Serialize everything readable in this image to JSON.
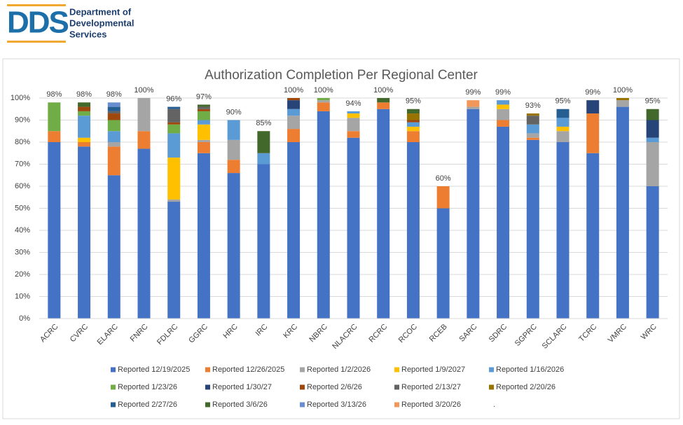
{
  "header": {
    "logo": "DDS",
    "org_lines": [
      "Department of",
      "Developmental",
      "Services"
    ]
  },
  "chart_data": {
    "type": "stacked-bar",
    "title": "Authorization Completion Per Regional Center",
    "categories": [
      "ACRC",
      "CVRC",
      "ELARC",
      "FNRC",
      "FDLRC",
      "GGRC",
      "HRC",
      "IRC",
      "KRC",
      "NBRC",
      "NLACRC",
      "RCRC",
      "RCOC",
      "RCEB",
      "SARC",
      "SDRC",
      "SGPRC",
      "SCLARC",
      "TCRC",
      "VMRC",
      "WRC"
    ],
    "series": [
      {
        "name": "Reported 12/19/2025",
        "color": "#4472c4",
        "values": [
          80,
          78,
          65,
          77,
          53,
          75,
          66,
          70,
          80,
          94,
          82,
          95,
          80,
          50,
          95,
          87,
          81,
          80,
          75,
          96,
          60
        ]
      },
      {
        "name": "Reported 12/26/2025",
        "color": "#ed7d31",
        "values": [
          5,
          2,
          13,
          8,
          0,
          5,
          6,
          0,
          6,
          4,
          3,
          3,
          5,
          10,
          0,
          3,
          1,
          0,
          18,
          0,
          0
        ]
      },
      {
        "name": "Reported 1/2/2026",
        "color": "#a5a5a5",
        "values": [
          0,
          0,
          2,
          15,
          1,
          1,
          9,
          0,
          6,
          1,
          6,
          0,
          0,
          0,
          1,
          5,
          2,
          5,
          0,
          3,
          20
        ]
      },
      {
        "name": "Reported 1/9/2027",
        "color": "#ffc000",
        "values": [
          0,
          2,
          0,
          0,
          19,
          7,
          0,
          0,
          0,
          0,
          2,
          0,
          2,
          0,
          0,
          2,
          0,
          2,
          0,
          0,
          0
        ]
      },
      {
        "name": "Reported 1/16/2026",
        "color": "#5b9bd5",
        "values": [
          0,
          10,
          5,
          0,
          11,
          2,
          9,
          5,
          3,
          0,
          1,
          0,
          2,
          0,
          0,
          2,
          4,
          4,
          0,
          0,
          2
        ]
      },
      {
        "name": "Reported 1/23/26",
        "color": "#70ad47",
        "values": [
          13,
          2,
          5,
          0,
          4,
          4,
          0,
          0,
          0,
          1,
          0,
          0,
          0,
          0,
          0,
          0,
          0,
          0,
          0,
          0,
          0
        ]
      },
      {
        "name": "Reported 1/30/27",
        "color": "#264478",
        "values": [
          0,
          0,
          0,
          0,
          0,
          0,
          0,
          0,
          4,
          0,
          0,
          0,
          0,
          0,
          0,
          0,
          0,
          0,
          6,
          0,
          8
        ]
      },
      {
        "name": "Reported 2/6/26",
        "color": "#9e480e",
        "values": [
          0,
          2,
          3,
          0,
          1,
          1,
          0,
          0,
          1,
          0,
          0,
          0,
          1,
          0,
          0,
          0,
          0,
          0,
          0,
          0,
          0
        ]
      },
      {
        "name": "Reported 2/13/27",
        "color": "#636363",
        "values": [
          0,
          0,
          1,
          0,
          6,
          1,
          0,
          0,
          0,
          0,
          0,
          0,
          0,
          0,
          0,
          0,
          4,
          0,
          0,
          0,
          0
        ]
      },
      {
        "name": "Reported 2/20/26",
        "color": "#997300",
        "values": [
          0,
          0,
          0,
          0,
          0,
          0,
          0,
          0,
          0,
          0,
          0,
          0,
          3,
          0,
          0,
          0,
          1,
          0,
          0,
          1,
          0
        ]
      },
      {
        "name": "Reported 2/27/26",
        "color": "#255e91",
        "values": [
          0,
          0,
          2,
          0,
          1,
          0,
          0,
          0,
          0,
          0,
          0,
          0,
          0,
          0,
          0,
          0,
          0,
          4,
          0,
          0,
          0
        ]
      },
      {
        "name": "Reported 3/6/26",
        "color": "#43682b",
        "values": [
          0,
          2,
          0,
          0,
          0,
          1,
          0,
          10,
          0,
          0,
          0,
          2,
          2,
          0,
          0,
          0,
          0,
          0,
          0,
          0,
          5
        ]
      },
      {
        "name": "Reported 3/13/26",
        "color": "#698ed0",
        "values": [
          0,
          0,
          2,
          0,
          0,
          0,
          0,
          0,
          0,
          0,
          0,
          0,
          0,
          0,
          0,
          0,
          0,
          0,
          0,
          0,
          0
        ]
      },
      {
        "name": "Reported 3/20/26",
        "color": "#f1975a",
        "values": [
          0,
          0,
          0,
          0,
          0,
          0,
          0,
          0,
          0,
          0,
          0,
          0,
          0,
          0,
          3,
          0,
          0,
          0,
          0,
          0,
          0
        ]
      }
    ],
    "total_labels": [
      "98%",
      "98%",
      "98%",
      "100%",
      "96%",
      "97%",
      "90%",
      "85%",
      "100%",
      "100%",
      "94%",
      "100%",
      "95%",
      "60%",
      "99%",
      "99%",
      "93%",
      "95%",
      "99%",
      "100%",
      "95%"
    ],
    "legend_note": ".",
    "ylim": [
      0,
      100
    ],
    "yticks": [
      {
        "value": 0,
        "label": "0%"
      },
      {
        "value": 10,
        "label": "10%"
      },
      {
        "value": 20,
        "label": "20%"
      },
      {
        "value": 30,
        "label": "30%"
      },
      {
        "value": 40,
        "label": "40%"
      },
      {
        "value": 50,
        "label": "50%"
      },
      {
        "value": 60,
        "label": "60%"
      },
      {
        "value": 70,
        "label": "70%"
      },
      {
        "value": 80,
        "label": "80%"
      },
      {
        "value": 90,
        "label": "90%"
      },
      {
        "value": 100,
        "label": "100%"
      }
    ],
    "grid": true
  }
}
